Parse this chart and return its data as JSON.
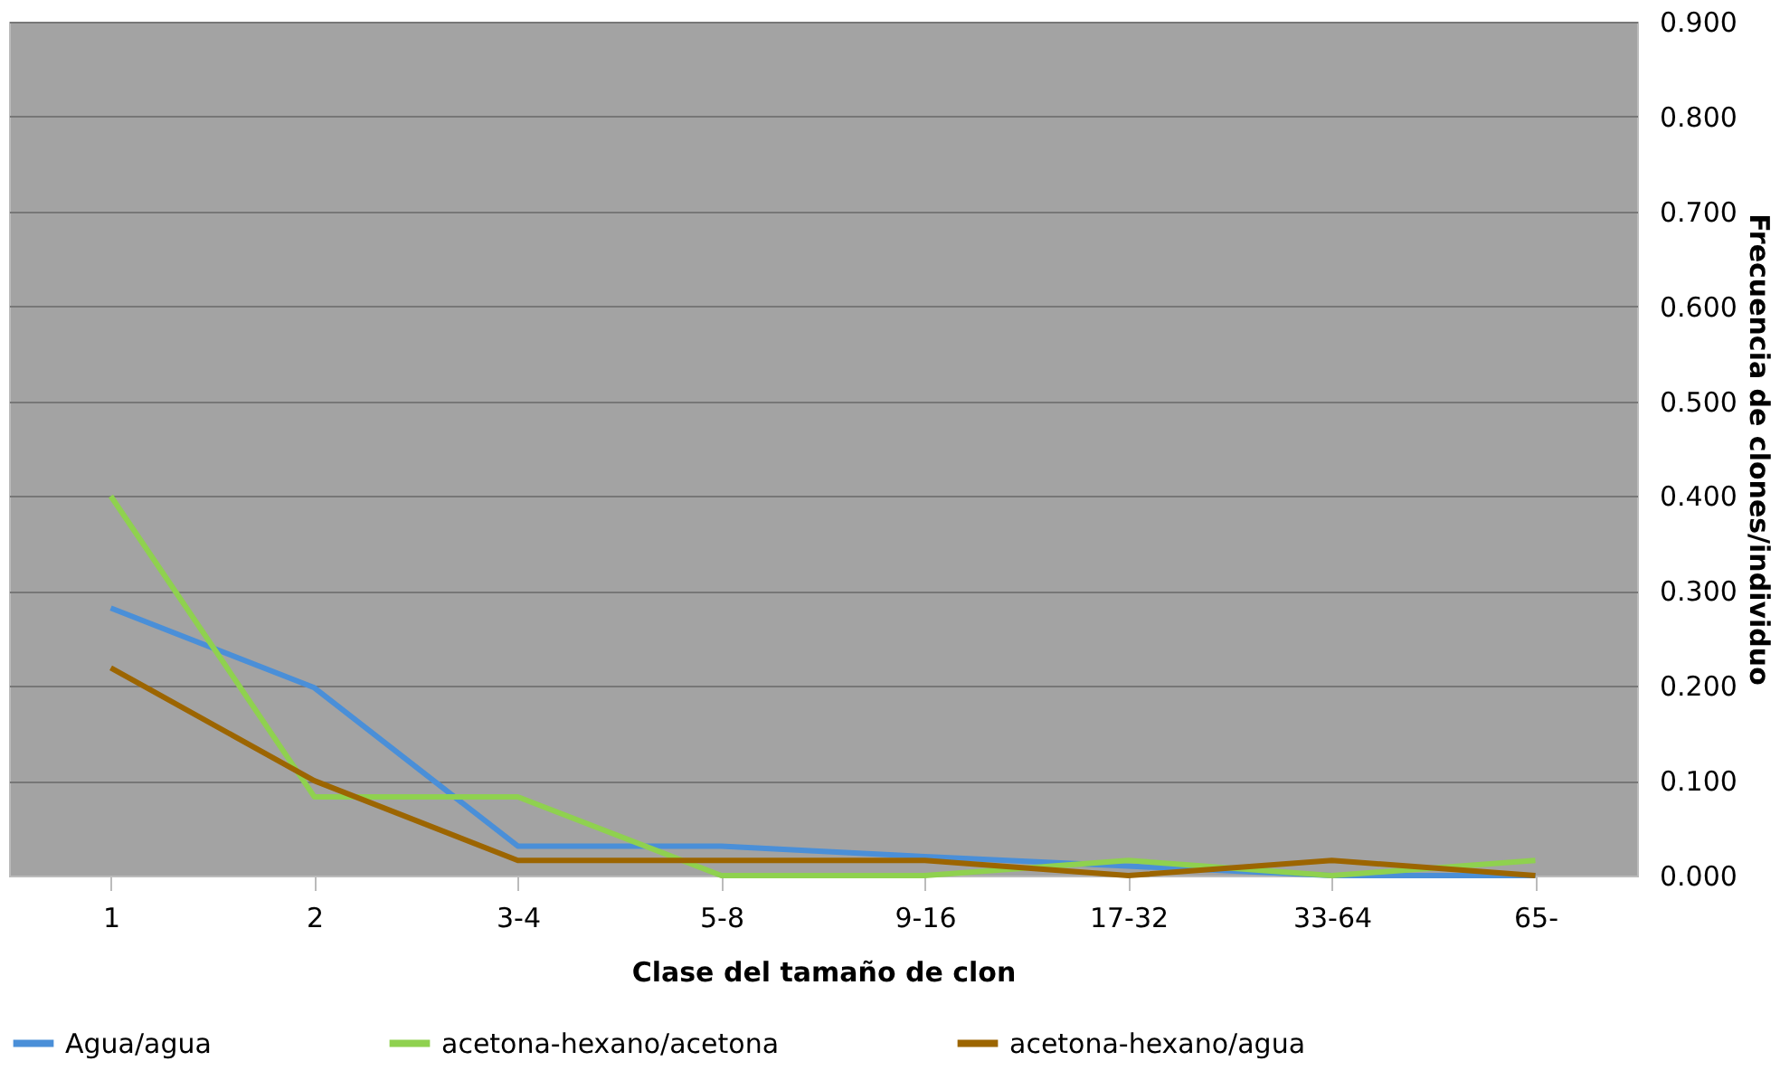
{
  "chart_data": {
    "type": "line",
    "xlabel": "Clase del tamaño de clon",
    "ylabel": "Frecuencia de clones/individuo",
    "categories": [
      "1",
      "2",
      "3-4",
      "5-8",
      "9-16",
      "17-32",
      "33-64",
      "65-"
    ],
    "series": [
      {
        "name": "Agua/agua",
        "color": "#4a8fd8",
        "values": [
          0.282,
          0.198,
          0.031,
          0.031,
          0.02,
          0.01,
          0,
          0
        ]
      },
      {
        "name": "acetona-hexano/acetona",
        "color": "#8fd14f",
        "values": [
          0.4,
          0.083,
          0.083,
          0,
          0,
          0.016,
          0,
          0.016
        ]
      },
      {
        "name": "acetona-hexano/agua",
        "color": "#9c6500",
        "values": [
          0.219,
          0.1,
          0.016,
          0.016,
          0.016,
          0,
          0.016,
          0
        ]
      }
    ],
    "ylim": [
      0,
      0.9
    ],
    "yticks": [
      {
        "value": 0,
        "label": "0.000"
      },
      {
        "value": 0.1,
        "label": "0.100"
      },
      {
        "value": 0.2,
        "label": "0.200"
      },
      {
        "value": 0.3,
        "label": "0.300"
      },
      {
        "value": 0.4,
        "label": "0.400"
      },
      {
        "value": 0.5,
        "label": "0.500"
      },
      {
        "value": 0.6,
        "label": "0.600"
      },
      {
        "value": 0.7,
        "label": "0.700"
      },
      {
        "value": 0.8,
        "label": "0.800"
      },
      {
        "value": 0.9,
        "label": "0.900"
      }
    ],
    "grid": "y",
    "legend": "bottom",
    "marker": "none",
    "line_style": "solid"
  }
}
